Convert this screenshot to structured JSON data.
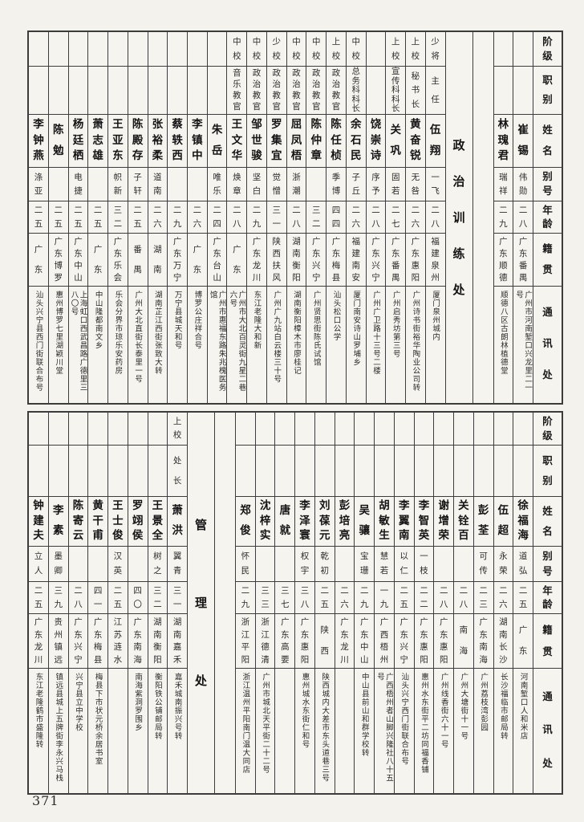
{
  "page_number": "371",
  "colors": {
    "paper": "#f4f2ed",
    "ink": "#232323",
    "border": "#3c3c3c"
  },
  "row_headers": [
    "阶级",
    "职别",
    "姓名",
    "别号",
    "年龄",
    "籍贯",
    "通讯处"
  ],
  "sections": [
    {
      "title": "政治训练处",
      "people_right_of_title": [
        {
          "rank": "",
          "role": "",
          "name": "崔锡",
          "alias": "伟勋",
          "age": "二八",
          "origin": "广东番禺",
          "address": "广州市河南堑口兴龙里二一号"
        },
        {
          "rank": "",
          "role": "",
          "name": "林瑰君",
          "alias": "瑞祥",
          "age": "二九",
          "origin": "广东顺德",
          "address": "顺德八区古朗林植德堂"
        }
      ],
      "people_left_of_title": [
        {
          "rank": "少将",
          "role": "主任",
          "name": "伍翔",
          "alias": "一飞",
          "age": "二八",
          "origin": "福建泉州",
          "address": "厦门泉州城内"
        },
        {
          "rank": "上校",
          "role": "秘书长",
          "name": "黄奋锐",
          "alias": "无咎",
          "age": "二六",
          "origin": "广东惠阳",
          "address": "广州诗书街裕华陶业公司转"
        },
        {
          "rank": "上校",
          "role": "宣传科科长",
          "name": "关巩",
          "alias": "固若",
          "age": "二七",
          "origin": "广东番禺",
          "address": "广州启秀坊第三号"
        },
        {
          "rank": "",
          "role": "",
          "name": "饶崇诗",
          "alias": "序予",
          "age": "二八",
          "origin": "广东兴宁",
          "address": "广州广卫路十三号二楼"
        },
        {
          "rank": "中校",
          "role": "总务科科长",
          "name": "余石民",
          "alias": "子丘",
          "age": "二六",
          "origin": "福建南安",
          "address": "厦门南安诗山罗埔乡"
        },
        {
          "rank": "上校",
          "role": "政治教官",
          "name": "陈任桢",
          "alias": "季博",
          "age": "四四",
          "origin": "广东梅县",
          "address": "汕头松口公学"
        },
        {
          "rank": "中校",
          "role": "政治教官",
          "name": "陈仲章",
          "alias": "",
          "age": "三二",
          "origin": "广东兴宁",
          "address": "广州贤思街陈氏试馆"
        },
        {
          "rank": "中校",
          "role": "政治教官",
          "name": "屈凤梧",
          "alias": "浙潮",
          "age": "二八",
          "origin": "湖南衡阳",
          "address": "湖南衡阳樟木市廖桂记"
        },
        {
          "rank": "少校",
          "role": "政治教官",
          "name": "罗集宜",
          "alias": "觉憎",
          "age": "三一",
          "origin": "陕西扶风",
          "address": "广州广九站白云楼三十号"
        },
        {
          "rank": "中校",
          "role": "政治教官",
          "name": "邹世骏",
          "alias": "坚白",
          "age": "二九",
          "origin": "广东龙川",
          "address": "东江老隆大和新"
        },
        {
          "rank": "中校",
          "role": "音乐教官",
          "name": "王文华",
          "alias": "焕章",
          "age": "二八",
          "origin": "广东",
          "address": "广州市大北百灵街九星二巷六号"
        },
        {
          "rank": "",
          "role": "",
          "name": "朱岳",
          "alias": "唯乐",
          "age": "二四",
          "origin": "广东台山",
          "address": "广州市惠福东路朱兆槐医务馆"
        },
        {
          "rank": "",
          "role": "",
          "name": "李镇中",
          "alias": "",
          "age": "二六",
          "origin": "广东",
          "address": "博罗公庄祥合号"
        },
        {
          "rank": "",
          "role": "",
          "name": "蔡轶西",
          "alias": "",
          "age": "二九",
          "origin": "广东万宁",
          "address": "万宁县城天和号"
        },
        {
          "rank": "",
          "role": "",
          "name": "张裕柔",
          "alias": "道南",
          "age": "二六",
          "origin": "湖南",
          "address": "湖南芷江西街张致大转"
        },
        {
          "rank": "",
          "role": "",
          "name": "陈殿存",
          "alias": "子轩",
          "age": "二五",
          "origin": "番禺",
          "address": "广州大北直街长泰里一号"
        },
        {
          "rank": "",
          "role": "",
          "name": "王亚东",
          "alias": "帜新",
          "age": "三二",
          "origin": "广东乐会",
          "address": "乐会分界市琼乐安药房"
        },
        {
          "rank": "",
          "role": "",
          "name": "萧志雄",
          "alias": "",
          "age": "二五",
          "origin": "广东",
          "address": "中山隆都南文乡"
        },
        {
          "rank": "",
          "role": "",
          "name": "杨廷栖",
          "alias": "电捷",
          "age": "二五",
          "origin": "广东中山",
          "address": "上海虹口西武昌路广德里三八〇号"
        },
        {
          "rank": "",
          "role": "",
          "name": "陈勉",
          "alias": "",
          "age": "二五",
          "origin": "广东博罗",
          "address": "惠州博罗七里湖颖川堂"
        },
        {
          "rank": "",
          "role": "",
          "name": "李钟燕",
          "alias": "涤亚",
          "age": "二五",
          "origin": "广东",
          "address": "汕头兴宁县西门街联合布号"
        }
      ]
    },
    {
      "title": "管理处",
      "people_right_of_title": [
        {
          "rank": "",
          "role": "",
          "name": "徐福海",
          "alias": "道弘",
          "age": "二五",
          "origin": "广东",
          "address": "河南堑口人和米店"
        },
        {
          "rank": "",
          "role": "",
          "name": "伍超",
          "alias": "永荣",
          "age": "二六",
          "origin": "湖南长沙",
          "address": "长沙福临市邮局转"
        },
        {
          "rank": "",
          "role": "",
          "name": "彭荃",
          "alias": "可传",
          "age": "二三",
          "origin": "广东南海",
          "address": "广州荔枝湾彭园"
        },
        {
          "rank": "",
          "role": "",
          "name": "关铨百",
          "alias": "",
          "age": "二八",
          "origin": "南海",
          "address": "广州大塘街十一号"
        },
        {
          "rank": "",
          "role": "",
          "name": "谢增荣",
          "alias": "",
          "age": "二八",
          "origin": "广东惠阳",
          "address": "广州线香街六十一号"
        },
        {
          "rank": "",
          "role": "",
          "name": "李智英",
          "alias": "一枝",
          "age": "二二",
          "origin": "广东惠阳",
          "address": "惠州水东街平二坊同福香铺"
        },
        {
          "rank": "",
          "role": "",
          "name": "李翼南",
          "alias": "以仁",
          "age": "二五",
          "origin": "广东兴宁",
          "address": "汕头兴宁西门街联合布号"
        },
        {
          "rank": "",
          "role": "",
          "name": "胡敏生",
          "alias": "慧若",
          "age": "一九",
          "origin": "广西梧州",
          "address": "广西梧州者山脚兴隆社八十五号"
        },
        {
          "rank": "",
          "role": "",
          "name": "吴骧",
          "alias": "宝珊",
          "age": "二九",
          "origin": "广东中山",
          "address": "中山县前山和群学校转"
        },
        {
          "rank": "",
          "role": "",
          "name": "彭培亮",
          "alias": "",
          "age": "二六",
          "origin": "广东龙川",
          "address": ""
        },
        {
          "rank": "",
          "role": "",
          "name": "刘葆元",
          "alias": "乾初",
          "age": "二五",
          "origin": "陕西",
          "address": "陕西城内大差市东头道巷三号"
        },
        {
          "rank": "",
          "role": "",
          "name": "李泽寰",
          "alias": "权宇",
          "age": "三八",
          "origin": "广东惠阳",
          "address": "惠州城水东街仁和号"
        },
        {
          "rank": "",
          "role": "",
          "name": "唐就",
          "alias": "",
          "age": "三七",
          "origin": "广东高要",
          "address": ""
        },
        {
          "rank": "",
          "role": "",
          "name": "沈梓实",
          "alias": "",
          "age": "三三",
          "origin": "浙江德清",
          "address": "广州市城北天平街二十二号"
        },
        {
          "rank": "",
          "role": "",
          "name": "郑俊",
          "alias": "怀民",
          "age": "二九",
          "origin": "浙江平阳",
          "address": "浙江温州平阳南门温大同店"
        }
      ],
      "people_left_of_title": [
        {
          "rank": "上校",
          "role": "处长",
          "name": "萧洪",
          "alias": "翼青",
          "age": "三一",
          "origin": "湖南嘉禾",
          "address": "嘉禾城南振兴号转"
        },
        {
          "rank": "",
          "role": "",
          "name": "王景全",
          "alias": "树之",
          "age": "三二",
          "origin": "湖南衡阳",
          "address": "衡阳铁公铺邮局转"
        },
        {
          "rank": "",
          "role": "",
          "name": "罗翊侯",
          "alias": "",
          "age": "四〇",
          "origin": "广东南海",
          "address": "南海紫洞罗围乡"
        },
        {
          "rank": "",
          "role": "",
          "name": "王士俊",
          "alias": "汉英",
          "age": "二五",
          "origin": "江苏涟水",
          "address": ""
        },
        {
          "rank": "",
          "role": "",
          "name": "黄干甫",
          "alias": "",
          "age": "四一",
          "origin": "广东梅县",
          "address": "梅县下市状元桥余居书室"
        },
        {
          "rank": "",
          "role": "",
          "name": "陈寄云",
          "alias": "",
          "age": "二八",
          "origin": "广东兴宁",
          "address": "兴宁县立中学校"
        },
        {
          "rank": "",
          "role": "",
          "name": "李素",
          "alias": "墨卿",
          "age": "三九",
          "origin": "贵州镇远",
          "address": "镇远县城上五牌街李永兴马栈"
        },
        {
          "rank": "",
          "role": "",
          "name": "钟建夫",
          "alias": "立人",
          "age": "二五",
          "origin": "广东龙川",
          "address": "东江老隆鹤市盛隆转"
        }
      ]
    }
  ]
}
